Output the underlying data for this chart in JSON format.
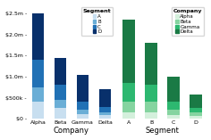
{
  "left": {
    "xlabel": "Company",
    "categories": [
      "Alpha",
      "Beta",
      "Gamma",
      "Delta"
    ],
    "segment_labels": [
      "A",
      "B",
      "C",
      "D"
    ],
    "colors": [
      "#c8dff0",
      "#6aaed6",
      "#2171b5",
      "#08306b"
    ],
    "values": {
      "Alpha": [
        400000,
        350000,
        650000,
        1100000
      ],
      "Beta": [
        250000,
        200000,
        350000,
        650000
      ],
      "Gamma": [
        120000,
        100000,
        180000,
        650000
      ],
      "Delta": [
        80000,
        70000,
        130000,
        430000
      ]
    }
  },
  "right": {
    "xlabel": "Segment",
    "categories": [
      "A",
      "B",
      "C",
      "D"
    ],
    "company_labels": [
      "Alpha",
      "Beta",
      "Gamma",
      "Delta"
    ],
    "colors": [
      "#d4f0dc",
      "#85d4a0",
      "#2db870",
      "#1a7a45"
    ],
    "values": {
      "A": [
        150000,
        250000,
        450000,
        1500000
      ],
      "B": [
        150000,
        250000,
        400000,
        1000000
      ],
      "C": [
        80000,
        130000,
        200000,
        600000
      ],
      "D": [
        60000,
        90000,
        100000,
        320000
      ]
    }
  },
  "ylim": [
    0,
    2700000
  ],
  "yticks": [
    0,
    500000,
    1000000,
    1500000,
    2000000,
    2500000
  ],
  "ytick_labels": [
    "$0 -",
    "$500k -",
    "$1.0m -",
    "$1.5m -",
    "$2.0m -",
    "$2.5m -"
  ],
  "bg_color": "#ffffff",
  "fontsize": 4.5,
  "bar_width": 0.55
}
